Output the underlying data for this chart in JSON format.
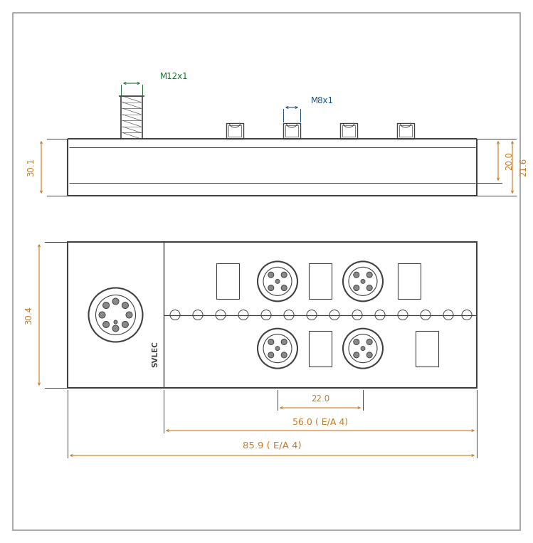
{
  "bg_color": "#ffffff",
  "line_color": "#404040",
  "dim_color": "#c87820",
  "m12_label_color": "#1a7030",
  "m8_label_color": "#1a5080",
  "fig_width": 7.49,
  "fig_height": 7.63,
  "top_view": {
    "m12_label": "M12x1",
    "m8_label": "M8x1",
    "dim_30_1": "30.1",
    "dim_20_0": "20.0",
    "dim_21_6": "21.6"
  },
  "front_view": {
    "dim_30_4": "30.4",
    "dim_22_0": "22.0",
    "dim_56_0": "56.0 ( E/A 4)",
    "dim_85_9": "85.9 ( E/A 4)",
    "svlec_label": "SVLEC"
  }
}
